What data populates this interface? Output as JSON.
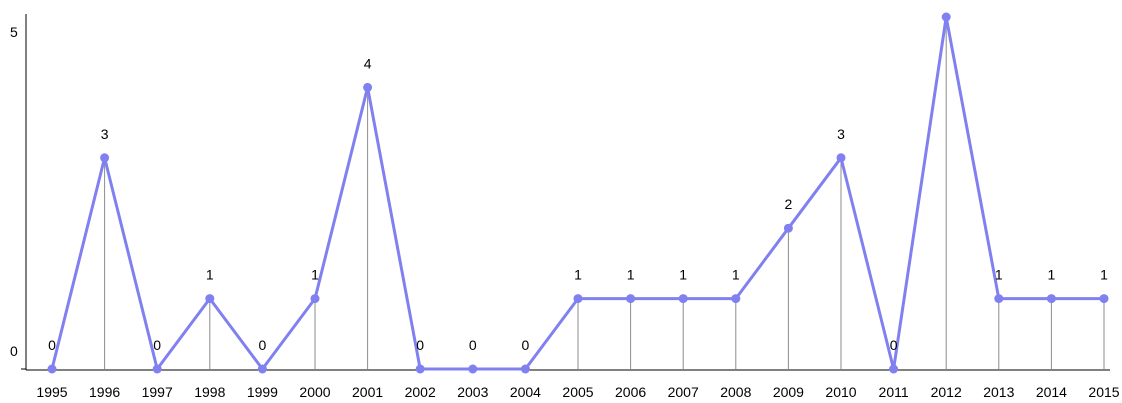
{
  "chart_data": {
    "type": "line",
    "categories": [
      "1995",
      "1996",
      "1997",
      "1998",
      "1999",
      "2000",
      "2001",
      "2002",
      "2003",
      "2004",
      "2005",
      "2006",
      "2007",
      "2008",
      "2009",
      "2010",
      "2011",
      "2012",
      "2013",
      "2014",
      "2015"
    ],
    "values": [
      0,
      3,
      0,
      1,
      0,
      1,
      4,
      0,
      0,
      0,
      1,
      1,
      1,
      1,
      2,
      3,
      0,
      5,
      1,
      1,
      1
    ],
    "point_labels": [
      "0",
      "3",
      "0",
      "1",
      "0",
      "1",
      "4",
      "0",
      "0",
      "0",
      "1",
      "1",
      "1",
      "1",
      "2",
      "3",
      "0",
      "",
      "1",
      "1",
      "1"
    ],
    "ylim": [
      0,
      5
    ],
    "y_ticks": [
      "0",
      "5"
    ],
    "title": "",
    "xlabel": "",
    "ylabel": "",
    "grid": false,
    "drop_lines": true,
    "colors": {
      "series": "#8080f0",
      "drop_line": "#8c8c8c",
      "axis": "#000000"
    }
  }
}
